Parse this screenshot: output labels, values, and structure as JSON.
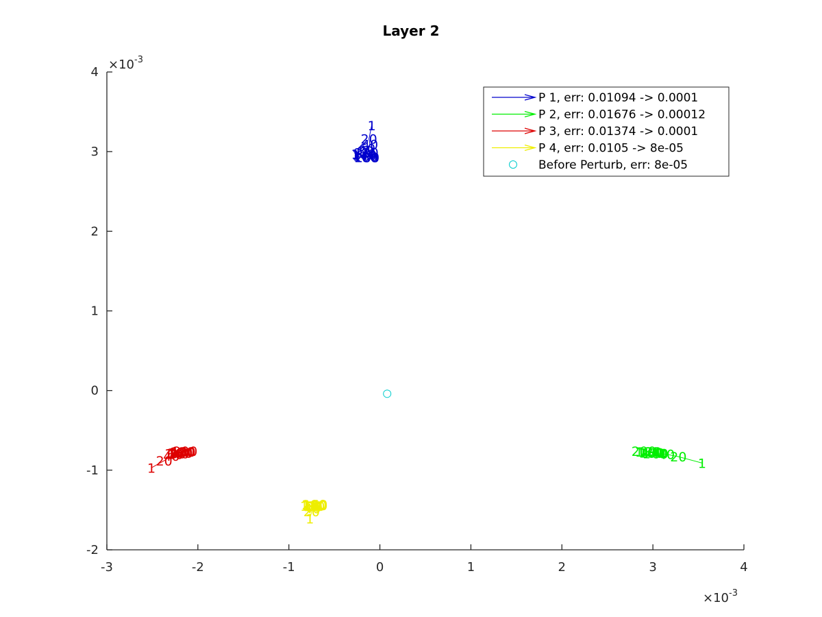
{
  "chart_data": {
    "type": "scatter",
    "title": "Layer 2",
    "xlabel": "",
    "ylabel": "",
    "xlim": [
      -0.003,
      0.004
    ],
    "ylim": [
      -0.002,
      0.004
    ],
    "x_ticks": [
      -3,
      -2,
      -1,
      0,
      1,
      2,
      3,
      4
    ],
    "y_ticks": [
      -2,
      -1,
      0,
      1,
      2,
      3,
      4
    ],
    "x_tick_labels": [
      "-3",
      "-2",
      "-1",
      "0",
      "1",
      "2",
      "3",
      "4"
    ],
    "y_tick_labels": [
      "-2",
      "-1",
      "0",
      "1",
      "2",
      "3",
      "4"
    ],
    "x_multiplier_base": "×10",
    "x_multiplier_exp": "-3",
    "y_multiplier_base": "×10",
    "y_multiplier_exp": "-3",
    "grid": false,
    "legend_position": "top-right",
    "series": [
      {
        "name": "P 1, err: 0.01094 -> 0.0001",
        "color": "#0000cc",
        "points": [
          {
            "label": "1",
            "x": -9e-05,
            "y": 0.00333
          },
          {
            "label": "20",
            "x": -0.00012,
            "y": 0.00316
          },
          {
            "label": "40",
            "x": -0.00011,
            "y": 0.00309
          },
          {
            "label": "60",
            "x": -0.00014,
            "y": 0.00304
          },
          {
            "label": "80",
            "x": -0.00016,
            "y": 0.00301
          },
          {
            "label": "100",
            "x": -0.00018,
            "y": 0.00297
          },
          {
            "label": "120",
            "x": -0.00015,
            "y": 0.00299
          },
          {
            "label": "140",
            "x": -0.00017,
            "y": 0.00296
          },
          {
            "label": "160",
            "x": -0.00016,
            "y": 0.00294
          },
          {
            "label": "180",
            "x": -0.00015,
            "y": 0.00293
          },
          {
            "label": "200",
            "x": -0.00014,
            "y": 0.00293
          }
        ]
      },
      {
        "name": "P 2, err: 0.01676 -> 0.00012",
        "color": "#00ee00",
        "points": [
          {
            "label": "1",
            "x": 0.00354,
            "y": -0.00091
          },
          {
            "label": "20",
            "x": 0.00328,
            "y": -0.00083
          },
          {
            "label": "40",
            "x": 0.00315,
            "y": -0.0008
          },
          {
            "label": "60",
            "x": 0.00308,
            "y": -0.00079
          },
          {
            "label": "80",
            "x": 0.00303,
            "y": -0.00078
          },
          {
            "label": "100",
            "x": 0.00299,
            "y": -0.00078
          },
          {
            "label": "120",
            "x": 0.00296,
            "y": -0.00077
          },
          {
            "label": "140",
            "x": 0.00302,
            "y": -0.00079
          },
          {
            "label": "160",
            "x": 0.00298,
            "y": -0.00078
          },
          {
            "label": "180",
            "x": 0.00294,
            "y": -0.00077
          },
          {
            "label": "200",
            "x": 0.0029,
            "y": -0.00076
          }
        ]
      },
      {
        "name": "P 3, err: 0.01374 -> 0.0001",
        "color": "#dd0000",
        "points": [
          {
            "label": "1",
            "x": -0.00251,
            "y": -0.00097
          },
          {
            "label": "20",
            "x": -0.00237,
            "y": -0.00088
          },
          {
            "label": "40",
            "x": -0.00229,
            "y": -0.00082
          },
          {
            "label": "60",
            "x": -0.00225,
            "y": -0.0008
          },
          {
            "label": "80",
            "x": -0.00222,
            "y": -0.00079
          },
          {
            "label": "100",
            "x": -0.00219,
            "y": -0.00078
          },
          {
            "label": "120",
            "x": -0.00217,
            "y": -0.00077
          },
          {
            "label": "140",
            "x": -0.00223,
            "y": -0.00079
          },
          {
            "label": "160",
            "x": -0.0022,
            "y": -0.00078
          },
          {
            "label": "180",
            "x": -0.00216,
            "y": -0.00077
          },
          {
            "label": "200",
            "x": -0.00214,
            "y": -0.00076
          }
        ]
      },
      {
        "name": "P 4, err: 0.0105 -> 8e-05",
        "color": "#eeee00",
        "points": [
          {
            "label": "1",
            "x": -0.00077,
            "y": -0.00161
          },
          {
            "label": "20",
            "x": -0.00075,
            "y": -0.00152
          },
          {
            "label": "40",
            "x": -0.00074,
            "y": -0.00148
          },
          {
            "label": "60",
            "x": -0.00073,
            "y": -0.00146
          },
          {
            "label": "80",
            "x": -0.00072,
            "y": -0.00145
          },
          {
            "label": "100",
            "x": -0.00071,
            "y": -0.00144
          },
          {
            "label": "120",
            "x": -0.00074,
            "y": -0.00145
          },
          {
            "label": "140",
            "x": -0.00072,
            "y": -0.00144
          },
          {
            "label": "160",
            "x": -0.00071,
            "y": -0.00143
          },
          {
            "label": "180",
            "x": -0.00072,
            "y": -0.00143
          },
          {
            "label": "200",
            "x": -0.00072,
            "y": -0.00143
          }
        ]
      }
    ],
    "reference_point": {
      "name": "Before Perturb, err: 8e-05",
      "color": "#00cccc",
      "x": 8e-05,
      "y": -4e-05
    }
  }
}
